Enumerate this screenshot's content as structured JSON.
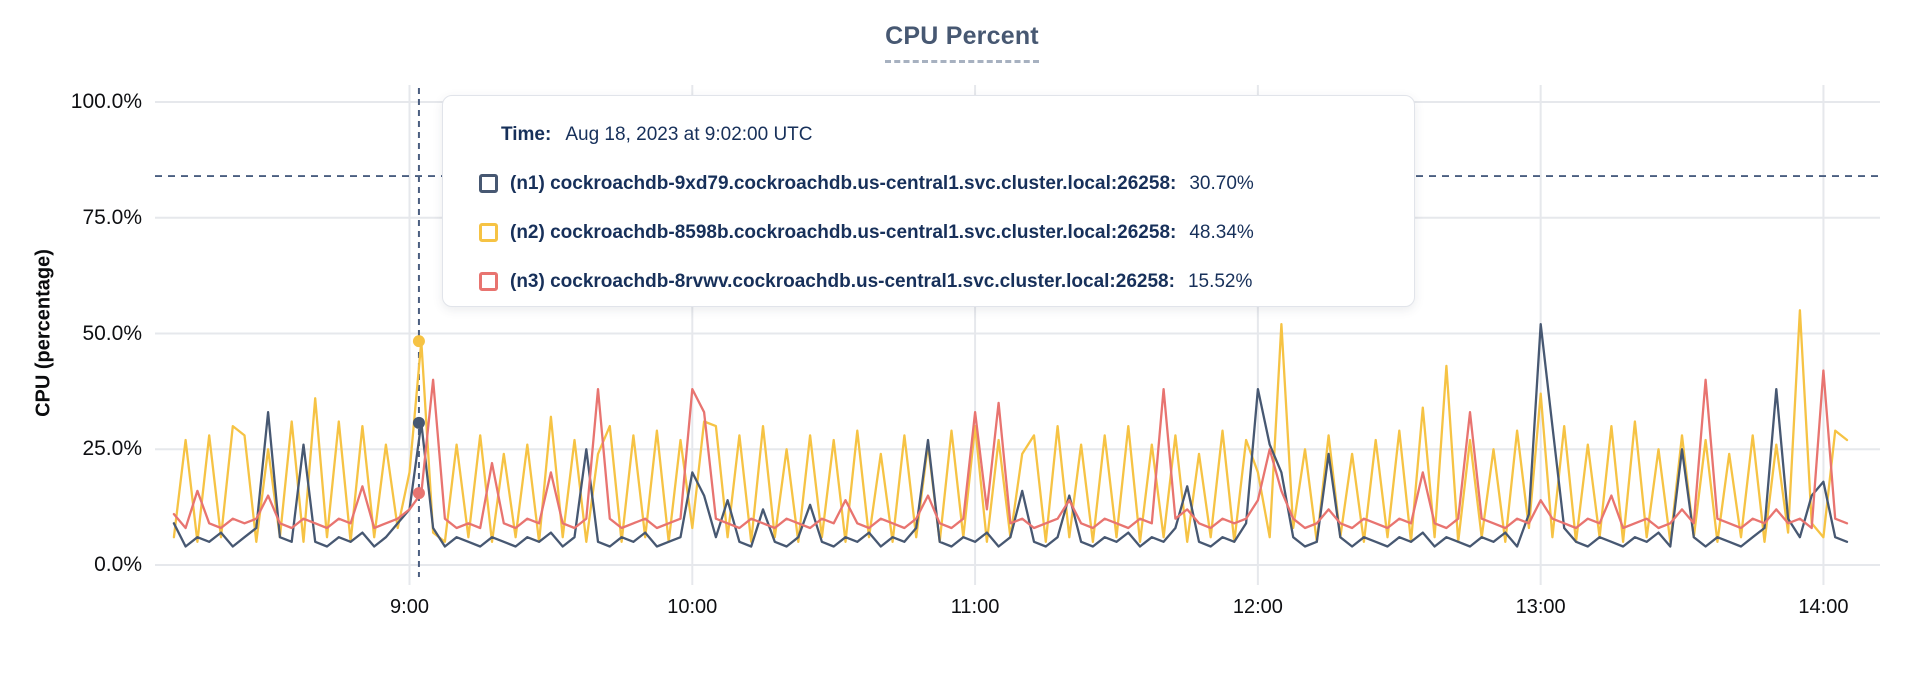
{
  "title": "CPU Percent",
  "tooltip": {
    "time_label": "Time:",
    "time_value": "Aug 18, 2023 at 9:02:00 UTC",
    "rows": [
      {
        "label": "(n1) cockroachdb-9xd79.cockroachdb.us-central1.svc.cluster.local:26258:",
        "value": "30.70%"
      },
      {
        "label": "(n2) cockroachdb-8598b.cockroachdb.us-central1.svc.cluster.local:26258:",
        "value": "48.34%"
      },
      {
        "label": "(n3) cockroachdb-8rvwv.cockroachdb.us-central1.svc.cluster.local:26258:",
        "value": "15.52%"
      }
    ]
  },
  "colors": {
    "title": "#475872",
    "tooltip_text": "#17305a",
    "grid": "#e6e8ec",
    "threshold": "#4a5e80",
    "hover_line": "#4a5e80",
    "tick_text": "#0e0f12"
  },
  "chart_data": {
    "type": "line",
    "title": "CPU Percent",
    "xlabel": "",
    "ylabel": "CPU (percentage)",
    "ylim": [
      0,
      100
    ],
    "xlim": [
      "8:06",
      "14:12"
    ],
    "grid": true,
    "legend_position": "tooltip",
    "y_ticks": [
      {
        "value": 0,
        "label": "0.0%"
      },
      {
        "value": 25,
        "label": "25.0%"
      },
      {
        "value": 50,
        "label": "50.0%"
      },
      {
        "value": 75,
        "label": "75.0%"
      },
      {
        "value": 100,
        "label": "100.0%"
      }
    ],
    "x_ticks": [
      {
        "time": "9:00",
        "label": "9:00"
      },
      {
        "time": "10:00",
        "label": "10:00"
      },
      {
        "time": "11:00",
        "label": "11:00"
      },
      {
        "time": "12:00",
        "label": "12:00"
      },
      {
        "time": "13:00",
        "label": "13:00"
      },
      {
        "time": "14:00",
        "label": "14:00"
      }
    ],
    "threshold_line": {
      "value": 84,
      "style": "dashed",
      "color": "#4a5e80"
    },
    "hover": {
      "time_label": "9:02",
      "points": [
        {
          "series": "n1",
          "value": 30.7
        },
        {
          "series": "n2",
          "value": 48.34
        },
        {
          "series": "n3",
          "value": 15.52
        }
      ]
    },
    "x_start": "8:10",
    "x_step_min": 2.5,
    "draw_order": [
      1,
      0,
      2
    ],
    "series": [
      {
        "id": "n1",
        "name": "(n1) cockroachdb-9xd79.cockroachdb.us-central1.svc.cluster.local:26258",
        "color": "#475872",
        "values": [
          9,
          4,
          6,
          5,
          7,
          4,
          6,
          8,
          33,
          6,
          5,
          26,
          5,
          4,
          6,
          5,
          7,
          4,
          6,
          9,
          12,
          30.7,
          8,
          4,
          6,
          5,
          4,
          6,
          5,
          4,
          6,
          5,
          7,
          4,
          6,
          25,
          5,
          4,
          6,
          5,
          7,
          4,
          5,
          6,
          20,
          15,
          6,
          14,
          5,
          4,
          12,
          5,
          4,
          6,
          13,
          5,
          4,
          6,
          5,
          7,
          4,
          6,
          5,
          8,
          27,
          5,
          4,
          6,
          5,
          7,
          4,
          6,
          16,
          5,
          4,
          6,
          15,
          5,
          4,
          6,
          5,
          7,
          4,
          6,
          5,
          8,
          17,
          5,
          4,
          6,
          5,
          9,
          38,
          26,
          20,
          6,
          4,
          5,
          24,
          6,
          4,
          6,
          5,
          4,
          6,
          5,
          7,
          4,
          6,
          5,
          4,
          6,
          5,
          7,
          4,
          11,
          52,
          30,
          8,
          5,
          4,
          6,
          5,
          4,
          6,
          5,
          7,
          4,
          25,
          6,
          4,
          6,
          5,
          4,
          6,
          8,
          38,
          10,
          6,
          15,
          18,
          6,
          5
        ]
      },
      {
        "id": "n2",
        "name": "(n2) cockroachdb-8598b.cockroachdb.us-central1.svc.cluster.local:26258",
        "color": "#f6c344",
        "values": [
          6,
          27,
          5,
          28,
          6,
          30,
          28,
          5,
          25,
          6,
          31,
          5,
          36,
          6,
          31,
          5,
          30,
          6,
          26,
          8,
          20,
          48.3,
          7,
          5,
          26,
          6,
          28,
          5,
          24,
          6,
          26,
          5,
          32,
          6,
          27,
          5,
          24,
          30,
          5,
          28,
          6,
          29,
          5,
          27,
          8,
          31,
          30,
          6,
          28,
          5,
          30,
          6,
          25,
          5,
          28,
          6,
          27,
          5,
          29,
          6,
          24,
          5,
          28,
          6,
          26,
          5,
          29,
          6,
          30,
          5,
          27,
          6,
          24,
          28,
          5,
          30,
          6,
          26,
          5,
          28,
          6,
          30,
          5,
          26,
          6,
          28,
          5,
          24,
          6,
          29,
          5,
          27,
          20,
          6,
          52,
          8,
          25,
          5,
          28,
          6,
          24,
          5,
          27,
          6,
          29,
          5,
          34,
          6,
          43,
          5,
          27,
          6,
          25,
          5,
          29,
          8,
          37,
          6,
          30,
          5,
          26,
          6,
          30,
          5,
          31,
          6,
          25,
          5,
          28,
          6,
          27,
          5,
          24,
          6,
          28,
          5,
          26,
          7,
          55,
          9,
          6,
          29,
          27
        ]
      },
      {
        "id": "n3",
        "name": "(n3) cockroachdb-8rvwv.cockroachdb.us-central1.svc.cluster.local:26258",
        "color": "#e87470",
        "values": [
          11,
          8,
          16,
          9,
          8,
          10,
          9,
          10,
          15,
          9,
          8,
          10,
          9,
          8,
          10,
          9,
          17,
          8,
          9,
          10,
          12,
          15.5,
          40,
          10,
          8,
          9,
          8,
          22,
          9,
          8,
          10,
          9,
          20,
          9,
          8,
          10,
          38,
          10,
          8,
          9,
          10,
          8,
          9,
          10,
          38,
          33,
          10,
          9,
          8,
          10,
          9,
          8,
          10,
          9,
          8,
          10,
          9,
          14,
          9,
          8,
          10,
          9,
          8,
          10,
          15,
          9,
          8,
          10,
          33,
          12,
          35,
          9,
          10,
          8,
          9,
          10,
          14,
          9,
          8,
          10,
          9,
          8,
          10,
          9,
          38,
          10,
          12,
          9,
          8,
          10,
          9,
          10,
          14,
          25,
          16,
          10,
          8,
          9,
          12,
          9,
          8,
          10,
          9,
          8,
          10,
          9,
          20,
          9,
          8,
          10,
          33,
          10,
          9,
          8,
          10,
          9,
          14,
          10,
          9,
          8,
          10,
          9,
          15,
          8,
          9,
          10,
          8,
          9,
          12,
          9,
          40,
          10,
          9,
          8,
          10,
          9,
          12,
          9,
          10,
          8,
          42,
          10,
          9
        ]
      }
    ]
  }
}
